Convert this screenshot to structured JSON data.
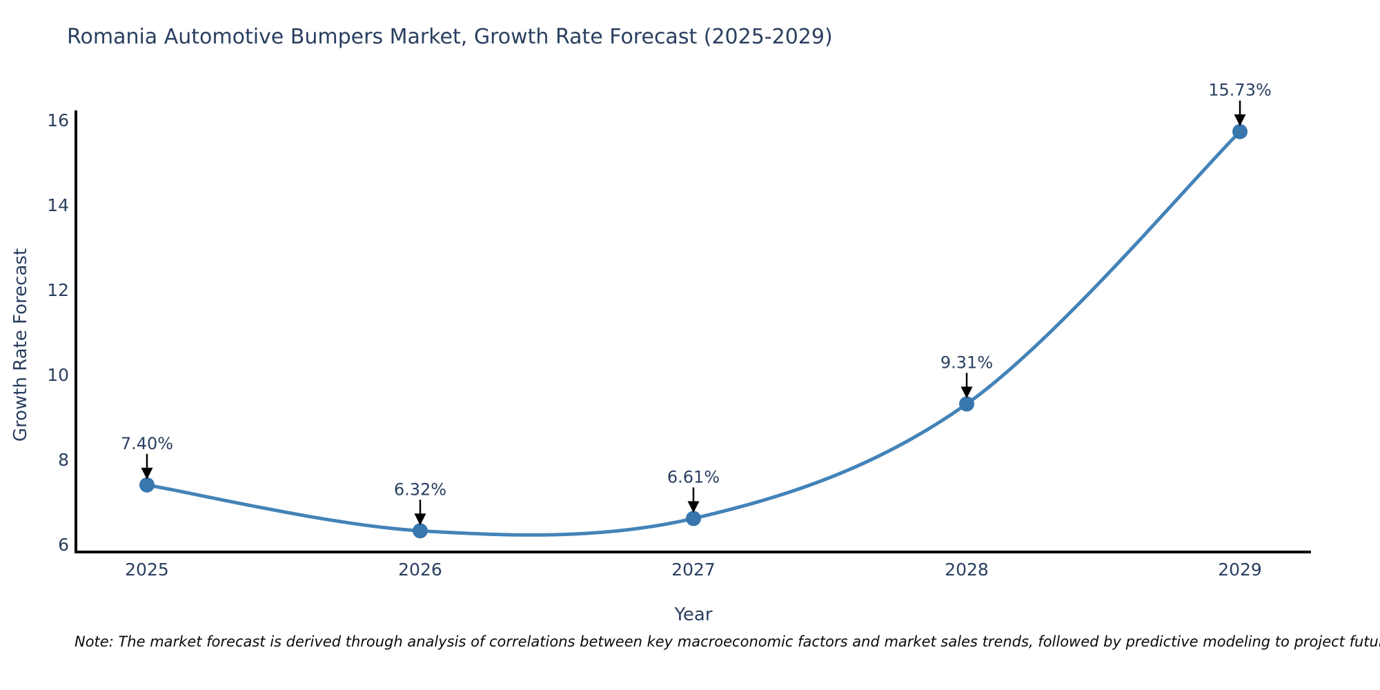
{
  "page": {
    "title": "Romania Automotive Bumpers Market, Growth Rate Forecast (2025-2029)",
    "note": "Note: The market forecast is derived through analysis of correlations between key macroeconomic factors and market sales trends, followed by predictive modeling to project future sales"
  },
  "chart_data": {
    "type": "line",
    "title": "Romania Automotive Bumpers Market, Growth Rate Forecast (2025-2029)",
    "xlabel": "Year",
    "ylabel": "Growth Rate Forecast",
    "x": [
      2025,
      2026,
      2027,
      2028,
      2029
    ],
    "series": [
      {
        "name": "Growth Rate Forecast",
        "values": [
          7.4,
          6.32,
          6.61,
          9.31,
          15.73
        ],
        "point_labels": [
          "7.40%",
          "6.32%",
          "6.61%",
          "9.31%",
          "15.73%"
        ]
      }
    ],
    "yticks": [
      6,
      8,
      10,
      12,
      14,
      16
    ],
    "xlim": [
      2024.74,
      2029.26
    ],
    "ylim": [
      5.82,
      16.23
    ],
    "line_shape": "spline",
    "grid": false,
    "legend_position": "none",
    "colors": {
      "line": "#4383b8",
      "marker": "#3876ae",
      "axis_line": "#000000",
      "tick_text": "#2a3f5f",
      "annotation_text": "#2a3f5f",
      "arrow": "#000000",
      "title_text": "#2a3f5f"
    }
  }
}
